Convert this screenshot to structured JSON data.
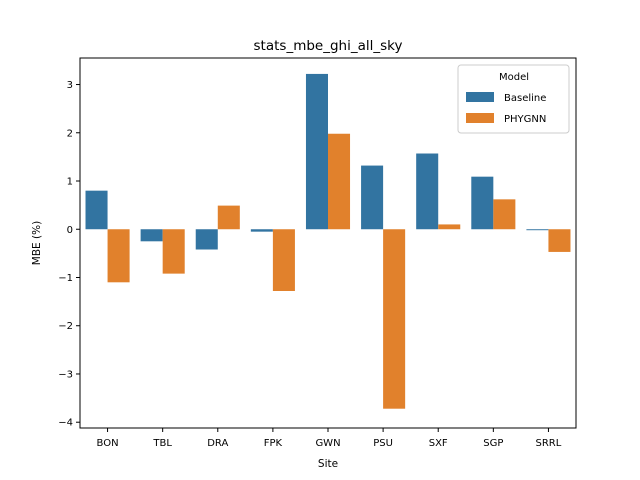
{
  "chart_data": {
    "type": "bar",
    "title": "stats_mbe_ghi_all_sky",
    "xlabel": "Site",
    "ylabel": "MBE (%)",
    "categories": [
      "BON",
      "TBL",
      "DRA",
      "FPK",
      "GWN",
      "PSU",
      "SXF",
      "SGP",
      "SRRL"
    ],
    "ylim": [
      -4.12,
      3.55
    ],
    "yticks": [
      -4,
      -3,
      -2,
      -1,
      0,
      1,
      2,
      3
    ],
    "legend": {
      "title": "Model",
      "placement": "top-right"
    },
    "series": [
      {
        "name": "Baseline",
        "color": "#3274a1",
        "values": [
          0.8,
          -0.25,
          -0.42,
          -0.05,
          3.22,
          1.32,
          1.57,
          1.09,
          -0.02
        ]
      },
      {
        "name": "PHYGNN",
        "color": "#e1812c",
        "values": [
          -1.1,
          -0.92,
          0.49,
          -1.28,
          1.98,
          -3.72,
          0.1,
          0.62,
          -0.47
        ]
      }
    ]
  }
}
